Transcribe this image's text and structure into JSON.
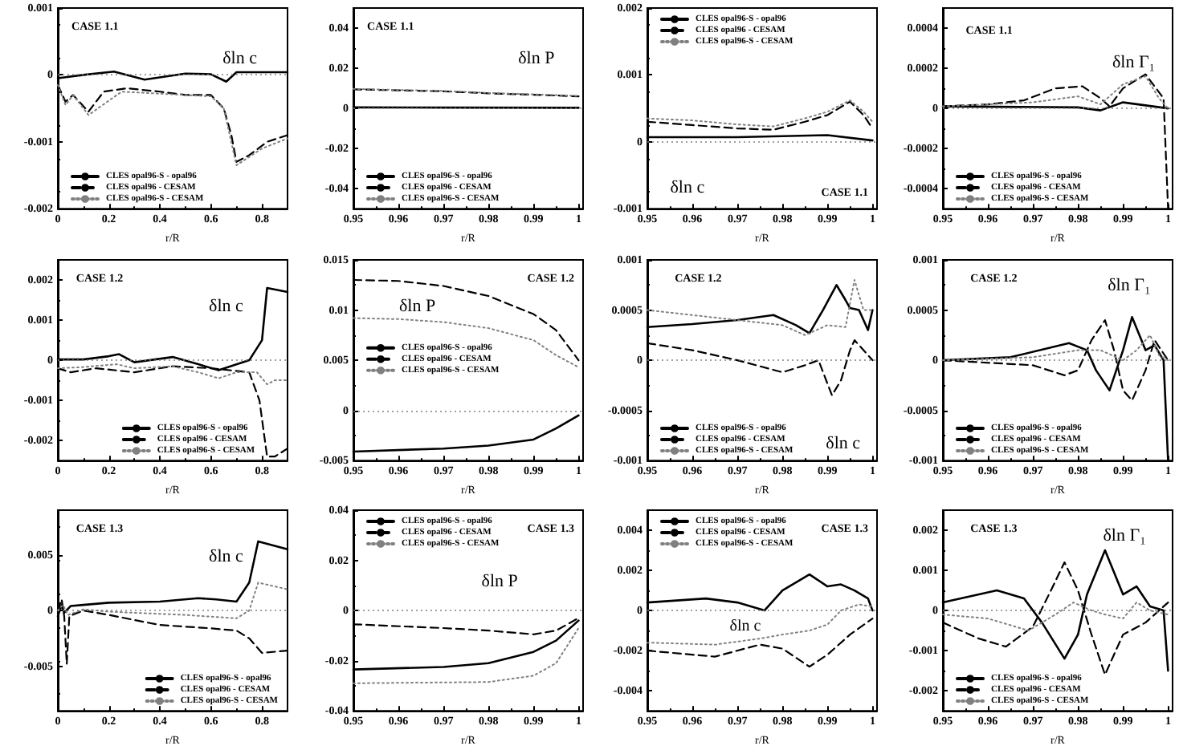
{
  "chart_data": [
    {
      "type": "line",
      "xlabel": "r/R",
      "annotations": [
        "CASE 1.1",
        "δln c"
      ],
      "xlim": [
        0,
        0.9
      ],
      "xticks": [
        0,
        0.2,
        0.4,
        0.6,
        0.8
      ],
      "ylim": [
        -0.002,
        0.001
      ],
      "yticks": [
        -0.002,
        -0.001,
        0,
        0.001
      ],
      "legend": "bottom left",
      "ref_lines": [
        {
          "axis": "y",
          "value": 0,
          "line_style": "dotted",
          "color": "#808080"
        }
      ],
      "series": [
        {
          "name": "CLES opal96-S - opal96",
          "color": "#000000",
          "line_style": "solid",
          "x": [
            0,
            0.1,
            0.22,
            0.34,
            0.5,
            0.6,
            0.66,
            0.7,
            0.9
          ],
          "values": [
            -5e-05,
            0,
            5e-05,
            -7e-05,
            2e-05,
            1e-05,
            -0.0001,
            4e-05,
            4e-05
          ]
        },
        {
          "name": "CLES opal96 - CESAM",
          "color": "#000000",
          "line_style": "dashed",
          "x": [
            0,
            0.03,
            0.06,
            0.12,
            0.18,
            0.27,
            0.4,
            0.5,
            0.6,
            0.65,
            0.68,
            0.7,
            0.75,
            0.82,
            0.9
          ],
          "values": [
            -0.00015,
            -0.0004,
            -0.0003,
            -0.00055,
            -0.00025,
            -0.0002,
            -0.00025,
            -0.0003,
            -0.0003,
            -0.0005,
            -0.0009,
            -0.0013,
            -0.0012,
            -0.001,
            -0.0009
          ]
        },
        {
          "name": "CLES opal96-S - CESAM",
          "color": "#808080",
          "line_style": "dotted",
          "x": [
            0,
            0.03,
            0.06,
            0.12,
            0.25,
            0.5,
            0.6,
            0.65,
            0.7,
            0.8,
            0.9
          ],
          "values": [
            -0.00015,
            -0.00045,
            -0.0003,
            -0.0006,
            -0.00025,
            -0.0003,
            -0.00032,
            -0.0005,
            -0.00135,
            -0.0011,
            -0.00095
          ]
        }
      ]
    },
    {
      "type": "line",
      "xlabel": "r/R",
      "annotations": [
        "CASE 1.1",
        "δln P"
      ],
      "xlim": [
        0.95,
        1.001
      ],
      "xticks": [
        0.95,
        0.96,
        0.97,
        0.98,
        0.99,
        1
      ],
      "ylim": [
        -0.05,
        0.05
      ],
      "yticks": [
        -0.04,
        -0.02,
        0,
        0.02,
        0.04
      ],
      "legend": "bottom left",
      "ref_lines": [
        {
          "axis": "y",
          "value": 0,
          "line_style": "dotted",
          "color": "#808080"
        }
      ],
      "series": [
        {
          "name": "CLES opal96-S - opal96",
          "color": "#000000",
          "line_style": "solid",
          "x": [
            0.95,
            0.97,
            1
          ],
          "values": [
            0.0005,
            0.0004,
            0.0003
          ]
        },
        {
          "name": "CLES opal96 - CESAM",
          "color": "#000000",
          "line_style": "dashed",
          "x": [
            0.95,
            0.97,
            0.98,
            0.99,
            1
          ],
          "values": [
            0.0095,
            0.0085,
            0.0075,
            0.0068,
            0.006
          ]
        },
        {
          "name": "CLES opal96-S - CESAM",
          "color": "#808080",
          "line_style": "dotted",
          "x": [
            0.95,
            0.97,
            0.98,
            0.99,
            1
          ],
          "values": [
            0.0097,
            0.0087,
            0.0077,
            0.007,
            0.0062
          ]
        }
      ]
    },
    {
      "type": "line",
      "xlabel": "r/R",
      "annotations": [
        "CASE 1.1",
        "δln c"
      ],
      "xlim": [
        0.95,
        1.001
      ],
      "xticks": [
        0.95,
        0.96,
        0.97,
        0.98,
        0.99,
        1
      ],
      "ylim": [
        -0.001,
        0.002
      ],
      "yticks": [
        -0.001,
        0,
        0.001,
        0.002
      ],
      "legend": "top left",
      "ref_lines": [
        {
          "axis": "y",
          "value": 0,
          "line_style": "dotted",
          "color": "#808080"
        }
      ],
      "series": [
        {
          "name": "CLES opal96-S - opal96",
          "color": "#000000",
          "line_style": "solid",
          "x": [
            0.95,
            0.97,
            0.99,
            1
          ],
          "values": [
            7e-05,
            7e-05,
            0.0001,
            2e-05
          ]
        },
        {
          "name": "CLES opal96 - CESAM",
          "color": "#000000",
          "line_style": "dashed",
          "x": [
            0.95,
            0.96,
            0.97,
            0.978,
            0.985,
            0.99,
            0.995,
            0.998,
            1
          ],
          "values": [
            0.0003,
            0.00025,
            0.0002,
            0.00018,
            0.0003,
            0.0004,
            0.0006,
            0.0004,
            0.0002
          ]
        },
        {
          "name": "CLES opal96-S - CESAM",
          "color": "#808080",
          "line_style": "dotted",
          "x": [
            0.95,
            0.96,
            0.97,
            0.978,
            0.985,
            0.99,
            0.995,
            0.998,
            1
          ],
          "values": [
            0.00035,
            0.00032,
            0.00026,
            0.00023,
            0.00035,
            0.00045,
            0.00062,
            0.00045,
            0.0003
          ]
        }
      ]
    },
    {
      "type": "line",
      "xlabel": "r/R",
      "annotations": [
        "CASE 1.1",
        "δln Γ₁"
      ],
      "xlim": [
        0.95,
        1.001
      ],
      "xticks": [
        0.95,
        0.96,
        0.97,
        0.98,
        0.99,
        1
      ],
      "ylim": [
        -0.0005,
        0.0005
      ],
      "yticks": [
        -0.0004,
        -0.0002,
        0,
        0.0002,
        0.0004
      ],
      "legend": "bottom left",
      "ref_lines": [
        {
          "axis": "y",
          "value": 0,
          "line_style": "dotted",
          "color": "#808080"
        }
      ],
      "series": [
        {
          "name": "CLES opal96-S - opal96",
          "color": "#000000",
          "line_style": "solid",
          "x": [
            0.95,
            0.98,
            0.985,
            0.99,
            1
          ],
          "values": [
            1e-05,
            5e-06,
            -1e-05,
            3e-05,
            0
          ]
        },
        {
          "name": "CLES opal96 - CESAM",
          "color": "#000000",
          "line_style": "dashed",
          "x": [
            0.95,
            0.96,
            0.968,
            0.975,
            0.981,
            0.985,
            0.987,
            0.99,
            0.995,
            0.998,
            0.999,
            1
          ],
          "values": [
            1e-05,
            2e-05,
            4e-05,
            0.0001,
            0.00011,
            5e-05,
            1e-05,
            0.0001,
            0.00017,
            8e-05,
            5e-05,
            -0.0005
          ]
        },
        {
          "name": "CLES opal96-S - CESAM",
          "color": "#808080",
          "line_style": "dotted",
          "x": [
            0.95,
            0.97,
            0.98,
            0.985,
            0.99,
            0.995,
            0.998,
            1
          ],
          "values": [
            1e-05,
            3e-05,
            6e-05,
            2e-05,
            0.00012,
            0.00016,
            5e-05,
            0
          ]
        }
      ]
    },
    {
      "type": "line",
      "xlabel": "r/R",
      "annotations": [
        "CASE 1.2",
        "δln c"
      ],
      "xlim": [
        0,
        0.9
      ],
      "xticks": [
        0,
        0.2,
        0.4,
        0.6,
        0.8
      ],
      "ylim": [
        -0.0025,
        0.0025
      ],
      "yticks": [
        -0.002,
        -0.001,
        0,
        0.001,
        0.002
      ],
      "legend": "bottom",
      "ref_lines": [
        {
          "axis": "y",
          "value": 0,
          "line_style": "dotted",
          "color": "#808080"
        }
      ],
      "series": [
        {
          "name": "CLES opal96-S - opal96",
          "color": "#000000",
          "line_style": "solid",
          "x": [
            0,
            0.1,
            0.2,
            0.24,
            0.3,
            0.45,
            0.55,
            0.63,
            0.75,
            0.8,
            0.82,
            0.9
          ],
          "values": [
            2e-05,
            2e-05,
            0.0001,
            0.00015,
            -5e-05,
            8e-05,
            -0.0001,
            -0.00025,
            0,
            0.0005,
            0.0018,
            0.0017
          ]
        },
        {
          "name": "CLES opal96 - CESAM",
          "color": "#000000",
          "line_style": "dashed",
          "x": [
            0,
            0.05,
            0.15,
            0.3,
            0.45,
            0.6,
            0.75,
            0.79,
            0.82,
            0.85,
            0.9
          ],
          "values": [
            -0.0002,
            -0.0003,
            -0.0002,
            -0.0003,
            -0.00015,
            -0.0002,
            -0.0003,
            -0.001,
            -0.0024,
            -0.0024,
            -0.0022
          ]
        },
        {
          "name": "CLES opal96-S - CESAM",
          "color": "#808080",
          "line_style": "dotted",
          "x": [
            0,
            0.1,
            0.23,
            0.3,
            0.45,
            0.55,
            0.63,
            0.7,
            0.78,
            0.82,
            0.85,
            0.9
          ],
          "values": [
            -0.0002,
            -0.00017,
            -0.0001,
            -0.0002,
            -0.00015,
            -0.0003,
            -0.00045,
            -0.0003,
            -0.0003,
            -0.0006,
            -0.0005,
            -0.0005
          ]
        }
      ]
    },
    {
      "type": "line",
      "xlabel": "r/R",
      "annotations": [
        "CASE 1.2",
        "δln P"
      ],
      "xlim": [
        0.95,
        1.001
      ],
      "xticks": [
        0.95,
        0.96,
        0.97,
        0.98,
        0.99,
        1
      ],
      "ylim": [
        -0.005,
        0.015
      ],
      "yticks": [
        -0.005,
        0,
        0.005,
        0.01,
        0.015
      ],
      "legend": "left",
      "ref_lines": [
        {
          "axis": "y",
          "value": 0,
          "line_style": "dotted",
          "color": "#808080"
        }
      ],
      "series": [
        {
          "name": "CLES opal96-S - opal96",
          "color": "#000000",
          "line_style": "solid",
          "x": [
            0.95,
            0.97,
            0.98,
            0.99,
            0.995,
            1
          ],
          "values": [
            -0.0041,
            -0.0038,
            -0.0035,
            -0.0029,
            -0.0018,
            -0.0005
          ]
        },
        {
          "name": "CLES opal96 - CESAM",
          "color": "#000000",
          "line_style": "dashed",
          "x": [
            0.95,
            0.96,
            0.97,
            0.98,
            0.99,
            0.995,
            1
          ],
          "values": [
            0.013,
            0.0129,
            0.0124,
            0.0114,
            0.0096,
            0.008,
            0.005
          ]
        },
        {
          "name": "CLES opal96-S - CESAM",
          "color": "#808080",
          "line_style": "dotted",
          "x": [
            0.95,
            0.96,
            0.97,
            0.98,
            0.99,
            0.995,
            1
          ],
          "values": [
            0.0092,
            0.0091,
            0.0088,
            0.0082,
            0.007,
            0.0055,
            0.0043
          ]
        }
      ]
    },
    {
      "type": "line",
      "xlabel": "r/R",
      "annotations": [
        "CASE 1.2",
        "δln c"
      ],
      "xlim": [
        0.95,
        1.001
      ],
      "xticks": [
        0.95,
        0.96,
        0.97,
        0.98,
        0.99,
        1
      ],
      "ylim": [
        -0.001,
        0.001
      ],
      "yticks": [
        -0.001,
        -0.0005,
        0,
        0.0005,
        0.001
      ],
      "legend": "bottom left",
      "ref_lines": [
        {
          "axis": "y",
          "value": 0,
          "line_style": "dotted",
          "color": "#808080"
        }
      ],
      "series": [
        {
          "name": "CLES opal96-S - opal96",
          "color": "#000000",
          "line_style": "solid",
          "x": [
            0.95,
            0.96,
            0.97,
            0.978,
            0.983,
            0.986,
            0.989,
            0.992,
            0.994,
            0.995,
            0.997,
            0.999,
            1
          ],
          "values": [
            0.00033,
            0.00036,
            0.0004,
            0.00045,
            0.00035,
            0.00027,
            0.0005,
            0.00075,
            0.0006,
            0.00052,
            0.0005,
            0.0003,
            0.0005
          ]
        },
        {
          "name": "CLES opal96 - CESAM",
          "color": "#000000",
          "line_style": "dashed",
          "x": [
            0.95,
            0.96,
            0.97,
            0.98,
            0.985,
            0.988,
            0.991,
            0.993,
            0.995,
            0.996,
            0.998,
            1
          ],
          "values": [
            0.00017,
            0.0001,
            0,
            -0.00012,
            -5e-05,
            0,
            -0.00035,
            -0.0002,
            0.0001,
            0.0002,
            0.0001,
            0
          ]
        },
        {
          "name": "CLES opal96-S - CESAM",
          "color": "#808080",
          "line_style": "dotted",
          "x": [
            0.95,
            0.96,
            0.97,
            0.98,
            0.985,
            0.99,
            0.994,
            0.996,
            0.998,
            1
          ],
          "values": [
            0.0005,
            0.00045,
            0.0004,
            0.00035,
            0.00025,
            0.00035,
            0.00033,
            0.0008,
            0.0005,
            0.0005
          ]
        }
      ]
    },
    {
      "type": "line",
      "xlabel": "r/R",
      "annotations": [
        "CASE 1.2",
        "δln Γ₁"
      ],
      "xlim": [
        0.95,
        1.001
      ],
      "xticks": [
        0.95,
        0.96,
        0.97,
        0.98,
        0.99,
        1
      ],
      "ylim": [
        -0.001,
        0.001
      ],
      "yticks": [
        -0.001,
        -0.0005,
        0,
        0.0005,
        0.001
      ],
      "legend": "bottom left",
      "ref_lines": [
        {
          "axis": "y",
          "value": 0,
          "line_style": "dotted",
          "color": "#808080"
        }
      ],
      "series": [
        {
          "name": "CLES opal96-S - opal96",
          "color": "#000000",
          "line_style": "solid",
          "x": [
            0.95,
            0.965,
            0.978,
            0.982,
            0.984,
            0.987,
            0.99,
            0.992,
            0.995,
            0.997,
            0.999,
            1
          ],
          "values": [
            0,
            3e-05,
            0.00017,
            0.0001,
            -0.0001,
            -0.0003,
            0.0001,
            0.00043,
            0.0001,
            0.00015,
            0,
            -0.001
          ]
        },
        {
          "name": "CLES opal96 - CESAM",
          "color": "#000000",
          "line_style": "dashed",
          "x": [
            0.95,
            0.97,
            0.977,
            0.98,
            0.983,
            0.986,
            0.988,
            0.99,
            0.992,
            0.995,
            0.997,
            1
          ],
          "values": [
            0,
            -5e-05,
            -0.00015,
            -0.0001,
            0.0002,
            0.0004,
            0.0001,
            -0.0003,
            -0.0004,
            -0.0001,
            0.0002,
            0
          ]
        },
        {
          "name": "CLES opal96-S - CESAM",
          "color": "#808080",
          "line_style": "dotted",
          "x": [
            0.95,
            0.97,
            0.98,
            0.985,
            0.99,
            0.993,
            0.996,
            0.998,
            1
          ],
          "values": [
            0,
            3e-05,
            0.0001,
            0.0001,
            0,
            0.0001,
            0.00025,
            5e-05,
            0
          ]
        }
      ]
    },
    {
      "type": "line",
      "xlabel": "r/R",
      "annotations": [
        "CASE 1.3",
        "δln c"
      ],
      "xlim": [
        0,
        0.9
      ],
      "xticks": [
        0,
        0.2,
        0.4,
        0.6,
        0.8
      ],
      "ylim": [
        -0.009,
        0.009
      ],
      "yticks": [
        -0.005,
        0,
        0.005
      ],
      "legend": "bottom right",
      "ref_lines": [
        {
          "axis": "y",
          "value": 0,
          "line_style": "dotted",
          "color": "#808080"
        }
      ],
      "series": [
        {
          "name": "CLES opal96-S - opal96",
          "color": "#000000",
          "line_style": "solid",
          "x": [
            0,
            0.015,
            0.025,
            0.05,
            0.1,
            0.2,
            0.4,
            0.55,
            0.62,
            0.7,
            0.75,
            0.785,
            0.9
          ],
          "values": [
            -0.0005,
            0.0005,
            -0.0002,
            0.0004,
            0.0005,
            0.0007,
            0.0008,
            0.0011,
            0.001,
            0.0008,
            0.0025,
            0.0062,
            0.0055
          ]
        },
        {
          "name": "CLES opal96 - CESAM",
          "color": "#000000",
          "line_style": "dashed",
          "x": [
            0,
            0.015,
            0.025,
            0.035,
            0.045,
            0.1,
            0.2,
            0.4,
            0.6,
            0.7,
            0.75,
            0.8,
            0.9
          ],
          "values": [
            0,
            0.001,
            -0.0005,
            -0.0048,
            -0.0005,
            0,
            -0.0004,
            -0.0013,
            -0.0016,
            -0.0018,
            -0.0025,
            -0.0038,
            -0.0036
          ]
        },
        {
          "name": "CLES opal96-S - CESAM",
          "color": "#808080",
          "line_style": "dotted",
          "x": [
            0,
            0.02,
            0.04,
            0.1,
            0.2,
            0.5,
            0.7,
            0.75,
            0.785,
            0.9
          ],
          "values": [
            0,
            0.0005,
            -0.0004,
            0.0001,
            -0.0001,
            -0.0004,
            -0.0007,
            0,
            0.0025,
            0.0019
          ]
        }
      ]
    },
    {
      "type": "line",
      "xlabel": "r/R",
      "annotations": [
        "CASE 1.3",
        "δln P"
      ],
      "xlim": [
        0.95,
        1.001
      ],
      "xticks": [
        0.95,
        0.96,
        0.97,
        0.98,
        0.99,
        1
      ],
      "ylim": [
        -0.04,
        0.04
      ],
      "yticks": [
        -0.04,
        -0.02,
        0,
        0.02,
        0.04
      ],
      "legend": "top left",
      "ref_lines": [
        {
          "axis": "y",
          "value": 0,
          "line_style": "dotted",
          "color": "#808080"
        }
      ],
      "series": [
        {
          "name": "CLES opal96-S - opal96",
          "color": "#000000",
          "line_style": "solid",
          "x": [
            0.95,
            0.97,
            0.98,
            0.99,
            0.995,
            1
          ],
          "values": [
            -0.0235,
            -0.0225,
            -0.021,
            -0.0165,
            -0.012,
            -0.004
          ]
        },
        {
          "name": "CLES opal96 - CESAM",
          "color": "#000000",
          "line_style": "dashed",
          "x": [
            0.95,
            0.97,
            0.98,
            0.99,
            0.995,
            1
          ],
          "values": [
            -0.0055,
            -0.007,
            -0.008,
            -0.0095,
            -0.008,
            -0.003
          ]
        },
        {
          "name": "CLES opal96-S - CESAM",
          "color": "#808080",
          "line_style": "dotted",
          "x": [
            0.95,
            0.98,
            0.99,
            0.995,
            1
          ],
          "values": [
            -0.029,
            -0.0285,
            -0.026,
            -0.021,
            -0.007
          ]
        }
      ]
    },
    {
      "type": "line",
      "xlabel": "r/R",
      "annotations": [
        "CASE 1.3",
        "δln c"
      ],
      "xlim": [
        0.95,
        1.001
      ],
      "xticks": [
        0.95,
        0.96,
        0.97,
        0.98,
        0.99,
        1
      ],
      "ylim": [
        -0.005,
        0.005
      ],
      "yticks": [
        -0.004,
        -0.002,
        0,
        0.002,
        0.004
      ],
      "legend": "top left",
      "ref_lines": [
        {
          "axis": "y",
          "value": 0,
          "line_style": "dotted",
          "color": "#808080"
        }
      ],
      "series": [
        {
          "name": "CLES opal96-S - opal96",
          "color": "#000000",
          "line_style": "solid",
          "x": [
            0.95,
            0.963,
            0.97,
            0.976,
            0.98,
            0.986,
            0.99,
            0.993,
            0.996,
            0.999,
            1
          ],
          "values": [
            0.0004,
            0.0006,
            0.0004,
            0,
            0.001,
            0.0018,
            0.0012,
            0.0013,
            0.001,
            0.0006,
            0
          ]
        },
        {
          "name": "CLES opal96 - CESAM",
          "color": "#000000",
          "line_style": "dashed",
          "x": [
            0.95,
            0.965,
            0.975,
            0.98,
            0.986,
            0.99,
            0.995,
            1
          ],
          "values": [
            -0.002,
            -0.0023,
            -0.0017,
            -0.0019,
            -0.0028,
            -0.0022,
            -0.0012,
            -0.0004
          ]
        },
        {
          "name": "CLES opal96-S - CESAM",
          "color": "#808080",
          "line_style": "dotted",
          "x": [
            0.95,
            0.965,
            0.975,
            0.98,
            0.986,
            0.99,
            0.993,
            0.997,
            1
          ],
          "values": [
            -0.0016,
            -0.0017,
            -0.0014,
            -0.0012,
            -0.001,
            -0.0007,
            0,
            0.0003,
            0.0002
          ]
        }
      ]
    },
    {
      "type": "line",
      "xlabel": "r/R",
      "annotations": [
        "CASE 1.3",
        "δln Γ₁"
      ],
      "xlim": [
        0.95,
        1.001
      ],
      "xticks": [
        0.95,
        0.96,
        0.97,
        0.98,
        0.99,
        1
      ],
      "ylim": [
        -0.0025,
        0.0025
      ],
      "yticks": [
        -0.002,
        -0.001,
        0,
        0.001,
        0.002
      ],
      "legend": "bottom left",
      "ref_lines": [
        {
          "axis": "y",
          "value": 0,
          "line_style": "dotted",
          "color": "#808080"
        }
      ],
      "series": [
        {
          "name": "CLES opal96-S - opal96",
          "color": "#000000",
          "line_style": "solid",
          "x": [
            0.95,
            0.962,
            0.968,
            0.972,
            0.977,
            0.98,
            0.982,
            0.986,
            0.99,
            0.993,
            0.996,
            0.999,
            1
          ],
          "values": [
            0.0002,
            0.0005,
            0.0003,
            -0.0003,
            -0.0012,
            -0.0006,
            0.0004,
            0.0015,
            0.0004,
            0.0006,
            0.0001,
            0,
            -0.0015
          ]
        },
        {
          "name": "CLES opal96 - CESAM",
          "color": "#000000",
          "line_style": "dashed",
          "x": [
            0.95,
            0.958,
            0.964,
            0.97,
            0.974,
            0.977,
            0.98,
            0.983,
            0.986,
            0.99,
            0.995,
            1
          ],
          "values": [
            -0.0003,
            -0.0007,
            -0.0009,
            -0.0004,
            0.0005,
            0.0012,
            0.0005,
            -0.0006,
            -0.0016,
            -0.0006,
            -0.0003,
            0.0002
          ]
        },
        {
          "name": "CLES opal96-S - CESAM",
          "color": "#808080",
          "line_style": "dotted",
          "x": [
            0.95,
            0.96,
            0.969,
            0.975,
            0.979,
            0.983,
            0.986,
            0.99,
            0.993,
            0.996,
            1
          ],
          "values": [
            -0.0001,
            -0.0002,
            -0.0005,
            -0.0001,
            0.0002,
            0,
            -0.0001,
            -0.0002,
            0.0002,
            0,
            -0.0001
          ]
        }
      ]
    }
  ]
}
